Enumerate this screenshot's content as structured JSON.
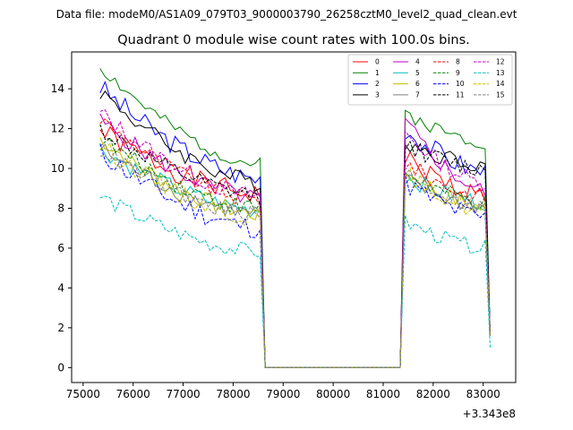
{
  "chart_data": {
    "type": "line",
    "suptitle": "Data file: modeM0/AS1A09_079T03_9000003790_26258cztM0_level2_quad_clean.evt",
    "title": "Quadrant 0 module wise count rates with 100.0s bins.",
    "xlabel": "",
    "ylabel": "",
    "x_offset_label": "+3.343e8",
    "xlim": [
      74770,
      83650
    ],
    "ylim": [
      -0.75,
      15.85
    ],
    "xticks": [
      75000,
      76000,
      77000,
      78000,
      79000,
      80000,
      81000,
      82000,
      83000
    ],
    "xtick_labels": [
      "75000",
      "76000",
      "77000",
      "78000",
      "79000",
      "80000",
      "81000",
      "82000",
      "83000"
    ],
    "yticks": [
      0,
      2,
      4,
      6,
      8,
      10,
      12,
      14
    ],
    "ytick_labels": [
      "0",
      "2",
      "4",
      "6",
      "8",
      "10",
      "12",
      "14"
    ],
    "segments": {
      "seg1": {
        "start": 75340,
        "step": 100,
        "count": 33
      },
      "gap": {
        "start": 78640,
        "end": 81340
      },
      "seg2": {
        "start": 81440,
        "step": 100,
        "count": 18
      }
    },
    "legend": {
      "location": "top-right",
      "columns": 4
    },
    "series": [
      {
        "name": "0",
        "color": "#ff0000",
        "dash": "solid",
        "s1": [
          11.9,
          8.7
        ],
        "s2": [
          10.5,
          8.6
        ],
        "amp": 0.55,
        "end": 1.6,
        "seed": 1
      },
      {
        "name": "1",
        "color": "#008000",
        "dash": "solid",
        "s1": [
          15.1,
          10.2
        ],
        "s2": [
          12.8,
          11.3
        ],
        "amp": 0.35,
        "end": 1.6,
        "seed": 2
      },
      {
        "name": "2",
        "color": "#0000ff",
        "dash": "solid",
        "s1": [
          14.1,
          9.5
        ],
        "s2": [
          12.0,
          9.8
        ],
        "amp": 0.55,
        "end": 1.6,
        "seed": 3
      },
      {
        "name": "3",
        "color": "#000000",
        "dash": "solid",
        "s1": [
          13.9,
          9.3
        ],
        "s2": [
          11.3,
          10.2
        ],
        "amp": 0.45,
        "end": 1.6,
        "seed": 4
      },
      {
        "name": "4",
        "color": "#bf00bf",
        "dash": "solid",
        "s1": [
          12.4,
          8.5
        ],
        "s2": [
          12.3,
          8.8
        ],
        "amp": 0.45,
        "end": 1.6,
        "seed": 5
      },
      {
        "name": "5",
        "color": "#00bfbf",
        "dash": "solid",
        "s1": [
          11.0,
          7.9
        ],
        "s2": [
          9.6,
          8.3
        ],
        "amp": 0.45,
        "end": 1.6,
        "seed": 6
      },
      {
        "name": "6",
        "color": "#bfbf00",
        "dash": "solid",
        "s1": [
          11.5,
          7.7
        ],
        "s2": [
          9.8,
          8.0
        ],
        "amp": 0.45,
        "end": 1.6,
        "seed": 7
      },
      {
        "name": "7",
        "color": "#808080",
        "dash": "solid",
        "s1": [
          11.0,
          7.7
        ],
        "s2": [
          9.4,
          8.0
        ],
        "amp": 0.45,
        "end": 1.6,
        "seed": 8
      },
      {
        "name": "8",
        "color": "#ff0000",
        "dash": "dashed",
        "s1": [
          12.5,
          8.4
        ],
        "s2": [
          10.3,
          8.5
        ],
        "amp": 0.45,
        "end": 1.6,
        "seed": 9
      },
      {
        "name": "9",
        "color": "#008000",
        "dash": "dashed",
        "s1": [
          11.5,
          8.0
        ],
        "s2": [
          9.8,
          8.2
        ],
        "amp": 0.45,
        "end": 1.6,
        "seed": 10
      },
      {
        "name": "10",
        "color": "#0000ff",
        "dash": "dashed",
        "s1": [
          10.8,
          7.0
        ],
        "s2": [
          9.3,
          7.5
        ],
        "amp": 0.55,
        "end": 1.6,
        "seed": 11
      },
      {
        "name": "11",
        "color": "#000000",
        "dash": "dashed",
        "s1": [
          12.0,
          8.6
        ],
        "s2": [
          11.2,
          9.9
        ],
        "amp": 0.45,
        "end": 1.6,
        "seed": 12
      },
      {
        "name": "12",
        "color": "#bf00bf",
        "dash": "dashed",
        "s1": [
          12.8,
          8.6
        ],
        "s2": [
          11.8,
          9.2
        ],
        "amp": 0.45,
        "end": 1.6,
        "seed": 13
      },
      {
        "name": "13",
        "color": "#00bfbf",
        "dash": "dashed",
        "s1": [
          8.6,
          5.8
        ],
        "s2": [
          7.3,
          6.0
        ],
        "amp": 0.4,
        "end": 1.0,
        "seed": 14
      },
      {
        "name": "14",
        "color": "#bfbf00",
        "dash": "dashed",
        "s1": [
          11.2,
          7.5
        ],
        "s2": [
          9.8,
          7.8
        ],
        "amp": 0.45,
        "end": 1.6,
        "seed": 15
      },
      {
        "name": "15",
        "color": "#808080",
        "dash": "dashed",
        "s1": [
          11.0,
          7.6
        ],
        "s2": [
          9.9,
          8.0
        ],
        "amp": 0.45,
        "end": 1.6,
        "seed": 16
      }
    ]
  }
}
